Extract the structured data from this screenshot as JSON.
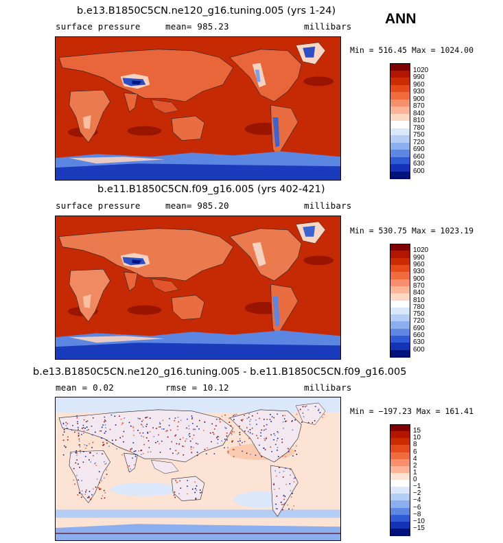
{
  "season": "ANN",
  "panels": [
    {
      "title": "b.e13.B1850C5CN.ne120_g16.tuning.005 (yrs 1-24)",
      "left_label": "surface pressure",
      "mid_label": "mean= 985.23",
      "units": "millibars",
      "range": "Min = 516.45 Max = 1024.00",
      "colorbar": {
        "labels": [
          "1020",
          "990",
          "960",
          "930",
          "900",
          "870",
          "840",
          "810",
          "780",
          "750",
          "720",
          "690",
          "660",
          "630",
          "600"
        ],
        "colors": [
          "#7f0000",
          "#b31500",
          "#cc2a00",
          "#e54a1a",
          "#f26b3f",
          "#f78f6e",
          "#fbb497",
          "#fdd8c3",
          "#ffffff",
          "#dbe8fb",
          "#b3cdf5",
          "#8aaeee",
          "#5d87e3",
          "#2f5cd6",
          "#1533b8",
          "#00137d"
        ]
      },
      "variant": "model"
    },
    {
      "title": "b.e11.B1850C5CN.f09_g16.005 (yrs 402-421)",
      "left_label": "surface pressure",
      "mid_label": "mean= 985.20",
      "units": "millibars",
      "range": "Min = 530.75 Max = 1023.19",
      "colorbar": {
        "labels": [
          "1020",
          "990",
          "960",
          "930",
          "900",
          "870",
          "840",
          "810",
          "780",
          "750",
          "720",
          "690",
          "660",
          "630",
          "600"
        ],
        "colors": [
          "#7f0000",
          "#b31500",
          "#cc2a00",
          "#e54a1a",
          "#f26b3f",
          "#f78f6e",
          "#fbb497",
          "#fdd8c3",
          "#ffffff",
          "#dbe8fb",
          "#b3cdf5",
          "#8aaeee",
          "#5d87e3",
          "#2f5cd6",
          "#1533b8",
          "#00137d"
        ]
      },
      "variant": "model"
    },
    {
      "title": "b.e13.B1850C5CN.ne120_g16.tuning.005 - b.e11.B1850C5CN.f09_g16.005",
      "left_label": "mean =    0.02",
      "mid_label": "rmse =   10.12",
      "units": "millibars",
      "range": "Min = −197.23 Max = 161.41",
      "colorbar": {
        "labels": [
          "15",
          "10",
          "8",
          "6",
          "4",
          "2",
          "1",
          "0",
          "−1",
          "−2",
          "−4",
          "−6",
          "−8",
          "−10",
          "−15"
        ],
        "colors": [
          "#7f0000",
          "#b31500",
          "#cc2a00",
          "#e54a1a",
          "#f26b3f",
          "#f78f6e",
          "#fbb497",
          "#fde3d3",
          "#ffffff",
          "#dbe8fb",
          "#b3cdf5",
          "#8aaeee",
          "#5d87e3",
          "#2f5cd6",
          "#1533b8",
          "#00137d"
        ]
      },
      "variant": "diff"
    }
  ]
}
